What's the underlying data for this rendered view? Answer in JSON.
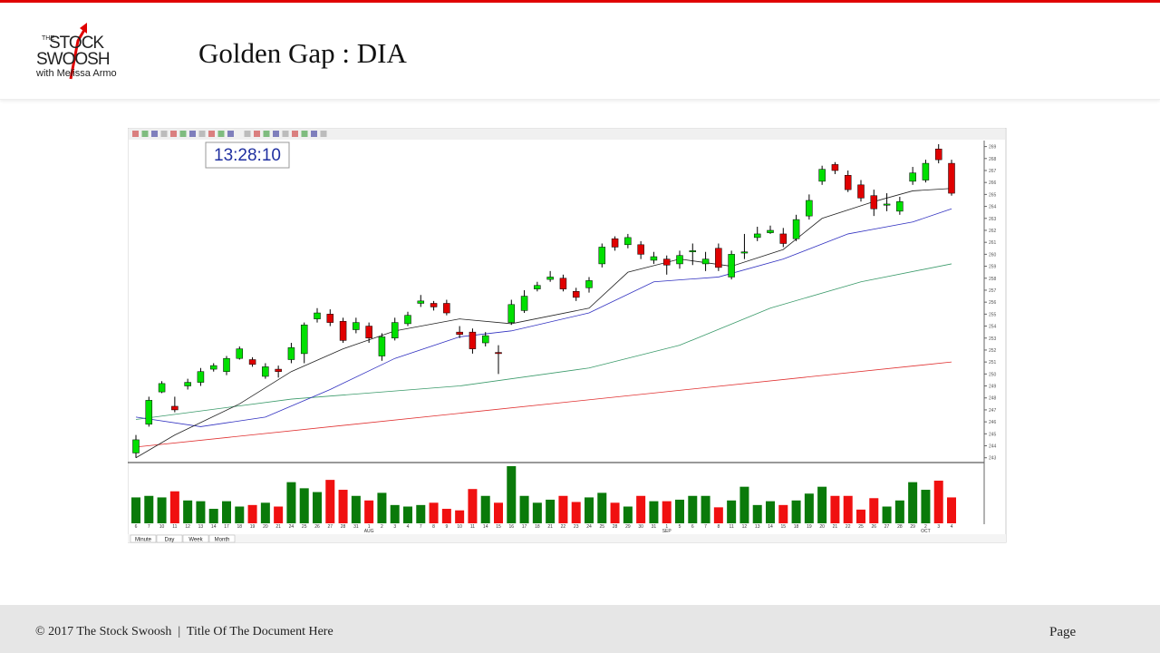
{
  "header": {
    "logo": {
      "the": "THE",
      "stock": "STOCK",
      "swoosh": "SWOOSH",
      "tagline": "with Melissa Armo"
    },
    "title": "Golden Gap :  DIA"
  },
  "clock": "13:28:10",
  "tabs": [
    "Minute",
    "Day",
    "Week",
    "Month"
  ],
  "footer": {
    "left": "© 2017 The Stock Swoosh  |  Title Of The Document Here",
    "right": "Page"
  },
  "chart_data": {
    "type": "candlestick",
    "categories": [
      "6",
      "7",
      "10",
      "11",
      "12",
      "13",
      "14",
      "17",
      "18",
      "19",
      "20",
      "21",
      "24",
      "25",
      "26",
      "27",
      "28",
      "31",
      "1",
      "2",
      "3",
      "4",
      "7",
      "8",
      "9",
      "10",
      "11",
      "14",
      "15",
      "16",
      "17",
      "18",
      "21",
      "22",
      "23",
      "24",
      "25",
      "28",
      "29",
      "30",
      "31",
      "1",
      "5",
      "6",
      "7",
      "8",
      "11",
      "12",
      "13",
      "14",
      "15",
      "18",
      "19",
      "20",
      "21",
      "22",
      "25",
      "26",
      "27",
      "28",
      "29",
      "2",
      "3",
      "4"
    ],
    "month_labels": [
      {
        "label": "AUG",
        "category": 18
      },
      {
        "label": "SEP",
        "category": 41
      },
      {
        "label": "OCT",
        "category": 61
      }
    ],
    "open": [
      243.4,
      245.8,
      248.5,
      247.3,
      249.0,
      249.3,
      250.4,
      250.2,
      251.3,
      251.2,
      249.8,
      250.4,
      251.2,
      251.7,
      254.6,
      255.0,
      254.4,
      253.7,
      254.0,
      251.5,
      253.0,
      254.2,
      255.9,
      255.9,
      255.9,
      253.5,
      253.5,
      252.6,
      251.8,
      254.3,
      255.3,
      257.1,
      257.9,
      258.0,
      256.9,
      257.2,
      259.2,
      261.3,
      260.8,
      260.8,
      259.5,
      259.6,
      259.2,
      260.2,
      259.2,
      260.5,
      258.1,
      260.1,
      261.4,
      261.8,
      261.7,
      261.3,
      263.2,
      266.1,
      267.5,
      266.6,
      265.8,
      264.9,
      264.1,
      263.6,
      266.1,
      266.2,
      268.8,
      267.6
    ],
    "high": [
      244.9,
      248.1,
      249.4,
      248.1,
      249.6,
      250.5,
      250.9,
      251.5,
      252.3,
      251.4,
      250.9,
      250.7,
      252.6,
      254.3,
      255.5,
      255.4,
      254.7,
      254.7,
      254.3,
      253.4,
      254.7,
      255.2,
      256.6,
      256.1,
      256.2,
      254.0,
      253.8,
      253.5,
      252.4,
      256.2,
      257.0,
      257.7,
      258.6,
      258.3,
      257.2,
      258.1,
      260.9,
      261.5,
      261.7,
      261.1,
      260.2,
      259.9,
      260.3,
      260.9,
      260.2,
      260.9,
      260.3,
      261.7,
      262.3,
      262.4,
      262.2,
      263.3,
      265.0,
      267.4,
      267.7,
      267.0,
      266.2,
      265.4,
      265.1,
      264.8,
      267.3,
      267.9,
      269.2,
      267.9
    ],
    "low": [
      243.0,
      245.6,
      248.4,
      246.8,
      248.7,
      249.0,
      250.2,
      249.9,
      251.2,
      250.6,
      249.6,
      249.7,
      250.9,
      250.9,
      254.3,
      254.0,
      252.6,
      253.4,
      252.6,
      251.1,
      252.8,
      254.0,
      255.6,
      255.3,
      254.9,
      253.0,
      251.7,
      252.3,
      250.0,
      254.1,
      255.1,
      256.9,
      257.7,
      256.9,
      256.1,
      256.8,
      258.9,
      260.3,
      260.5,
      259.6,
      259.2,
      258.3,
      258.8,
      259.1,
      258.6,
      258.6,
      257.9,
      259.6,
      261.1,
      261.7,
      260.6,
      261.1,
      262.9,
      265.8,
      266.7,
      265.2,
      264.4,
      263.2,
      263.6,
      263.3,
      265.8,
      266.0,
      267.6,
      264.9
    ],
    "close": [
      244.5,
      247.8,
      249.2,
      247.0,
      249.3,
      250.2,
      250.7,
      251.3,
      252.1,
      250.8,
      250.6,
      250.2,
      252.2,
      254.1,
      255.1,
      254.3,
      252.8,
      254.3,
      253.0,
      253.1,
      254.3,
      254.9,
      256.1,
      255.6,
      255.1,
      253.3,
      252.1,
      253.2,
      251.7,
      255.8,
      256.5,
      257.4,
      258.1,
      257.1,
      256.4,
      257.8,
      260.6,
      260.6,
      261.4,
      260.0,
      259.8,
      259.1,
      259.9,
      260.3,
      259.6,
      258.9,
      260.0,
      260.2,
      261.7,
      262.0,
      260.9,
      262.9,
      264.5,
      267.1,
      267.0,
      265.4,
      264.7,
      263.8,
      264.2,
      264.4,
      266.8,
      267.6,
      267.9,
      265.1
    ],
    "up_color": "#00e000",
    "down_color": "#e00000",
    "ylim": [
      242.6,
      269.5
    ],
    "yticks": [
      243,
      244,
      245,
      246,
      247,
      248,
      249,
      250,
      251,
      252,
      253,
      254,
      255,
      256,
      257,
      258,
      259,
      260,
      261,
      262,
      263,
      264,
      265,
      266,
      267,
      268,
      269
    ],
    "moving_averages": [
      {
        "color": "#e03030",
        "x": [
          0,
          63
        ],
        "values": [
          243.9,
          251.0
        ]
      },
      {
        "color": "#3a9a6a",
        "x": [
          0,
          12,
          25,
          35,
          42,
          49,
          56,
          63
        ],
        "values": [
          246.2,
          247.9,
          249.0,
          250.5,
          252.4,
          255.5,
          257.7,
          259.2
        ]
      },
      {
        "color": "#3030c0",
        "x": [
          0,
          5,
          10,
          15,
          20,
          25,
          29,
          35,
          40,
          45,
          50,
          55,
          60,
          63
        ],
        "values": [
          246.4,
          245.6,
          246.4,
          248.7,
          251.3,
          253.1,
          253.6,
          255.1,
          257.7,
          258.1,
          259.6,
          261.7,
          262.7,
          263.8
        ]
      },
      {
        "color": "#222222",
        "x": [
          0,
          3,
          8,
          12,
          16,
          20,
          25,
          29,
          35,
          38,
          42,
          46,
          50,
          53,
          57,
          60,
          63
        ],
        "values": [
          243.0,
          244.9,
          247.5,
          250.2,
          252.1,
          253.6,
          254.6,
          254.2,
          255.5,
          258.5,
          259.6,
          259.0,
          260.4,
          263.0,
          264.4,
          265.3,
          265.5
        ]
      }
    ],
    "volume": [
      3.4,
      3.6,
      3.4,
      4.2,
      3.0,
      2.9,
      1.9,
      2.9,
      2.2,
      2.4,
      2.7,
      2.2,
      5.4,
      4.6,
      4.1,
      5.7,
      4.4,
      3.6,
      3.0,
      4.0,
      2.4,
      2.2,
      2.4,
      2.7,
      1.9,
      1.7,
      4.5,
      3.6,
      2.7,
      7.5,
      3.6,
      2.7,
      3.1,
      3.6,
      2.8,
      3.4,
      4.0,
      2.7,
      2.2,
      3.6,
      2.9,
      2.9,
      3.1,
      3.6,
      3.6,
      2.1,
      3.0,
      4.8,
      2.4,
      2.9,
      2.4,
      3.0,
      3.9,
      4.8,
      3.6,
      3.6,
      1.8,
      3.3,
      2.2,
      3.0,
      5.4,
      4.4,
      5.6,
      3.4
    ],
    "volume_ylim": [
      0,
      7.5
    ],
    "volume_up_color": "#0a7a0a",
    "volume_down_color": "#f01010"
  }
}
